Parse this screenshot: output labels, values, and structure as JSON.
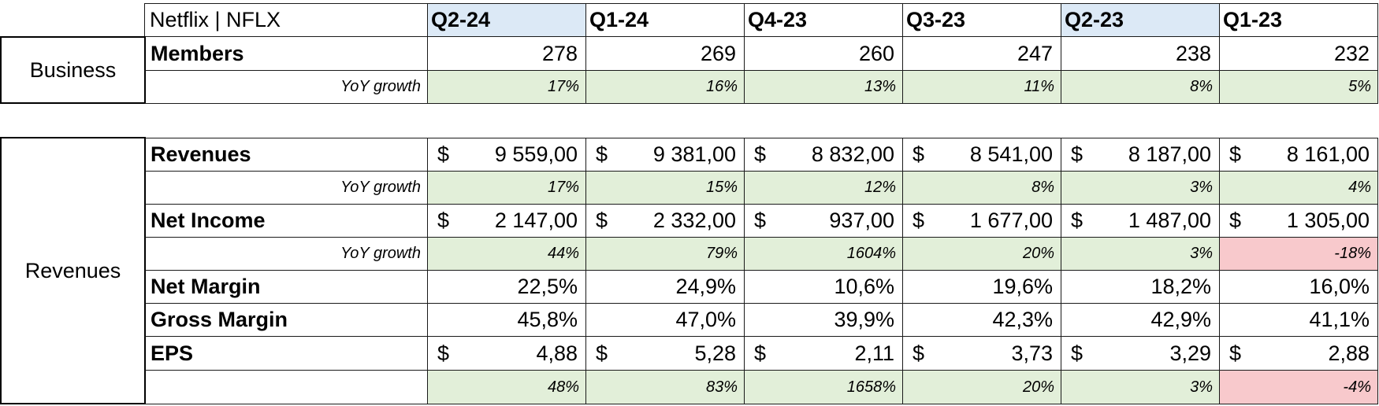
{
  "header": {
    "title": "Netflix | NFLX",
    "quarters": [
      "Q2-24",
      "Q1-24",
      "Q4-23",
      "Q3-23",
      "Q2-23",
      "Q1-23"
    ]
  },
  "sections": {
    "business": "Business",
    "revenues": "Revenues"
  },
  "rows": {
    "members": {
      "label": "Members",
      "values": [
        "278",
        "269",
        "260",
        "247",
        "238",
        "232"
      ]
    },
    "members_yoy": {
      "label": "YoY growth",
      "values": [
        "17%",
        "16%",
        "13%",
        "11%",
        "8%",
        "5%"
      ]
    },
    "revenues": {
      "label": "Revenues",
      "currency": "$",
      "values": [
        "9 559,00",
        "9 381,00",
        "8 832,00",
        "8 541,00",
        "8 187,00",
        "8 161,00"
      ]
    },
    "revenues_yoy": {
      "label": "YoY growth",
      "values": [
        "17%",
        "15%",
        "12%",
        "8%",
        "3%",
        "4%"
      ]
    },
    "net_income": {
      "label": "Net Income",
      "currency": "$",
      "values": [
        "2 147,00",
        "2 332,00",
        "937,00",
        "1 677,00",
        "1 487,00",
        "1 305,00"
      ]
    },
    "net_income_yoy": {
      "label": "YoY growth",
      "values": [
        "44%",
        "79%",
        "1604%",
        "20%",
        "3%",
        "-18%"
      ]
    },
    "net_margin": {
      "label": "Net Margin",
      "values": [
        "22,5%",
        "24,9%",
        "10,6%",
        "19,6%",
        "18,2%",
        "16,0%"
      ]
    },
    "gross_margin": {
      "label": "Gross Margin",
      "values": [
        "45,8%",
        "47,0%",
        "39,9%",
        "42,3%",
        "42,9%",
        "41,1%"
      ]
    },
    "eps": {
      "label": "EPS",
      "currency": "$",
      "values": [
        "4,88",
        "5,28",
        "2,11",
        "3,73",
        "3,29",
        "2,88"
      ]
    },
    "eps_yoy": {
      "label": "",
      "values": [
        "48%",
        "83%",
        "1658%",
        "20%",
        "3%",
        "-4%"
      ]
    }
  },
  "colors": {
    "positive_fill": "#e2efd9",
    "negative_fill": "#f8c9cc",
    "highlight_quarter": "#dce9f6"
  }
}
